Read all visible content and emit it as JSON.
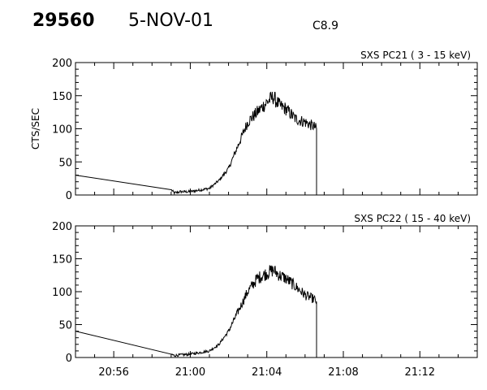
{
  "header": {
    "id": "29560",
    "date": "5-NOV-01",
    "flare_class": "C8.9"
  },
  "chart_data": [
    {
      "type": "line",
      "title": "SXS PC21  (  3 - 15 keV)",
      "ylabel": "CTS/SEC",
      "xlabel": "",
      "ylim": [
        0,
        200
      ],
      "yticks": [
        0,
        50,
        100,
        150,
        200
      ],
      "xlim": [
        "20:54",
        "21:15"
      ],
      "x_tick_labels": [],
      "series": [
        {
          "color": "#000000",
          "x": [
            "20:54",
            "20:59",
            "20:59:10",
            "20:59:30",
            "21:00",
            "21:01",
            "21:01:30",
            "21:02",
            "21:02:30",
            "21:03",
            "21:03:30",
            "21:04",
            "21:04:20",
            "21:04:40",
            "21:05",
            "21:05:30",
            "21:06",
            "21:06:30",
            "21:06:35",
            "21:06:36"
          ],
          "y": [
            30,
            8,
            3,
            5,
            5,
            10,
            22,
            40,
            75,
            110,
            125,
            140,
            148,
            135,
            130,
            115,
            110,
            103,
            100,
            0
          ]
        }
      ]
    },
    {
      "type": "line",
      "title": "SXS PC22  ( 15 - 40 keV)",
      "ylabel": "",
      "xlabel": "",
      "ylim": [
        0,
        200
      ],
      "yticks": [
        0,
        50,
        100,
        150,
        200
      ],
      "xlim": [
        "20:54",
        "21:15"
      ],
      "x_tick_labels": [
        "20:56",
        "21:00",
        "21:04",
        "21:08",
        "21:12"
      ],
      "series": [
        {
          "color": "#000000",
          "x": [
            "20:54",
            "20:59",
            "20:59:10",
            "20:59:30",
            "21:00",
            "21:01",
            "21:01:30",
            "21:02",
            "21:02:30",
            "21:03",
            "21:03:30",
            "21:04",
            "21:04:20",
            "21:04:40",
            "21:05",
            "21:05:30",
            "21:06",
            "21:06:30",
            "21:06:35",
            "21:06:36"
          ],
          "y": [
            40,
            5,
            3,
            4,
            5,
            10,
            20,
            40,
            70,
            100,
            120,
            128,
            133,
            125,
            120,
            108,
            95,
            88,
            85,
            0
          ]
        }
      ]
    }
  ]
}
